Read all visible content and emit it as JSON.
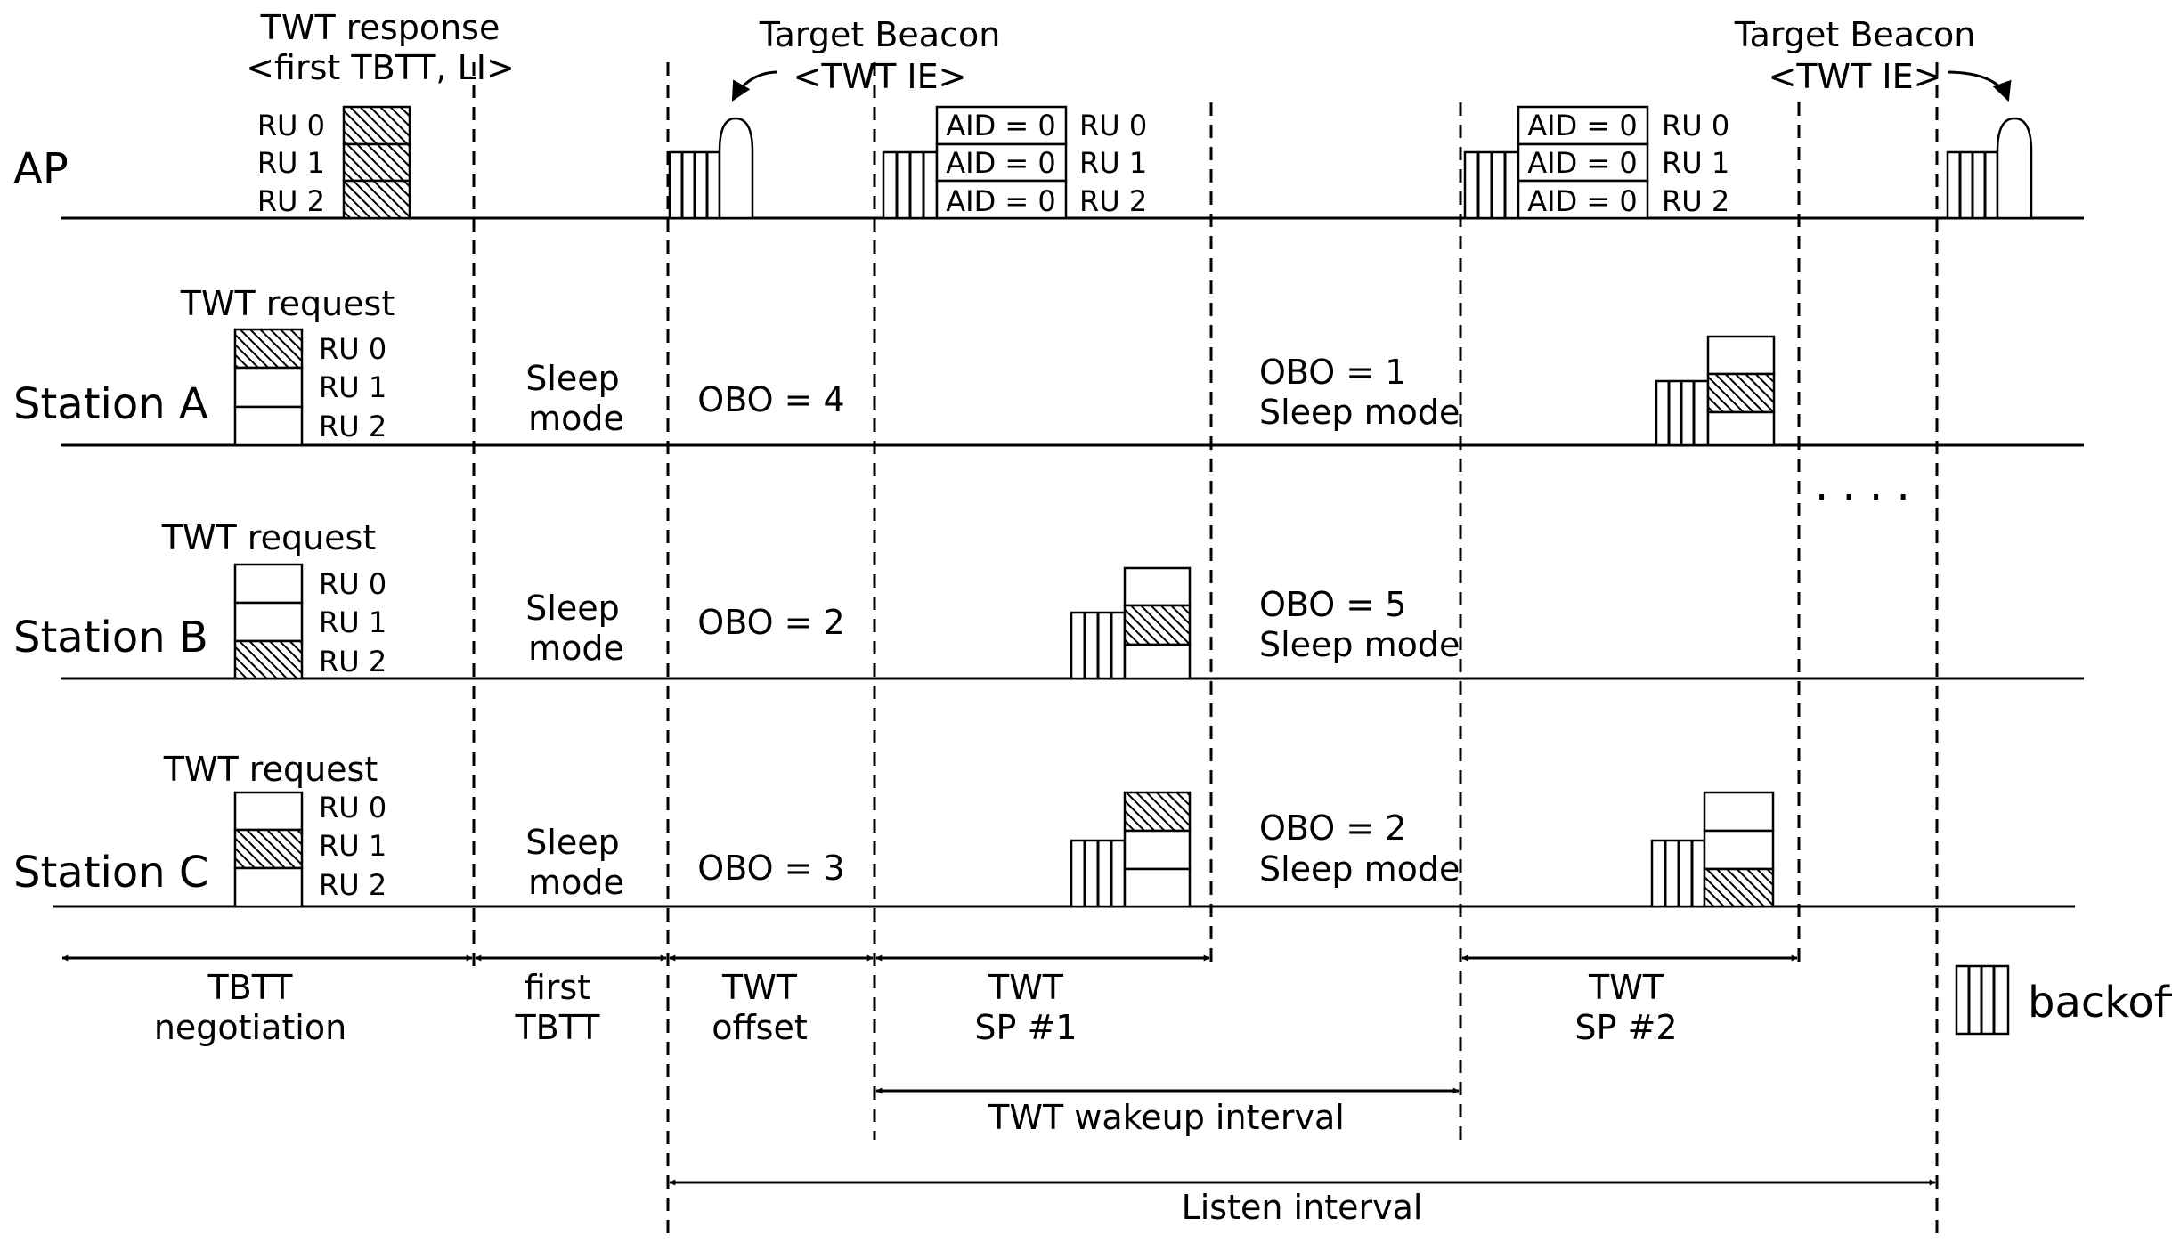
{
  "rows": {
    "ap": "AP",
    "station_a": "Station A",
    "station_b": "Station B",
    "station_c": "Station C"
  },
  "ap_labels": {
    "twt_response_line1": "TWT response",
    "twt_response_line2": "<first TBTT, LI>",
    "target_beacon_left": "Target Beacon",
    "twt_ie_left": "<TWT IE>",
    "target_beacon_right": "Target Beacon",
    "twt_ie_right": "<TWT IE>",
    "aid_label": "AID = 0",
    "ru": [
      "RU 0",
      "RU 1",
      "RU 2"
    ]
  },
  "stations": {
    "twt_request": "TWT request",
    "ru": [
      "RU 0",
      "RU 1",
      "RU 2"
    ],
    "sleep_line1": "Sleep",
    "sleep_line2": "mode",
    "sleep_mode": "Sleep mode",
    "a": {
      "obo_first": "OBO = 4",
      "obo_second": "OBO = 1",
      "hatched_ru": 0
    },
    "b": {
      "obo_first": "OBO = 2",
      "obo_second": "OBO = 5",
      "hatched_ru": 2
    },
    "c": {
      "obo_first": "OBO = 3",
      "obo_second": "OBO = 2",
      "hatched_ru": 1
    }
  },
  "intervals": {
    "tbtt_negotiation_1": "TBTT",
    "tbtt_negotiation_2": "negotiation",
    "first_tbtt_1": "first",
    "first_tbtt_2": "TBTT",
    "twt_offset_1": "TWT",
    "twt_offset_2": "offset",
    "twt_sp1_1": "TWT",
    "twt_sp1_2": "SP #1",
    "twt_sp2_1": "TWT",
    "twt_sp2_2": "SP #2",
    "twt_wakeup_interval": "TWT wakeup interval",
    "listen_interval": "Listen interval"
  },
  "legend": {
    "backoff": "backoff"
  },
  "ellipsis": "· · · ·"
}
